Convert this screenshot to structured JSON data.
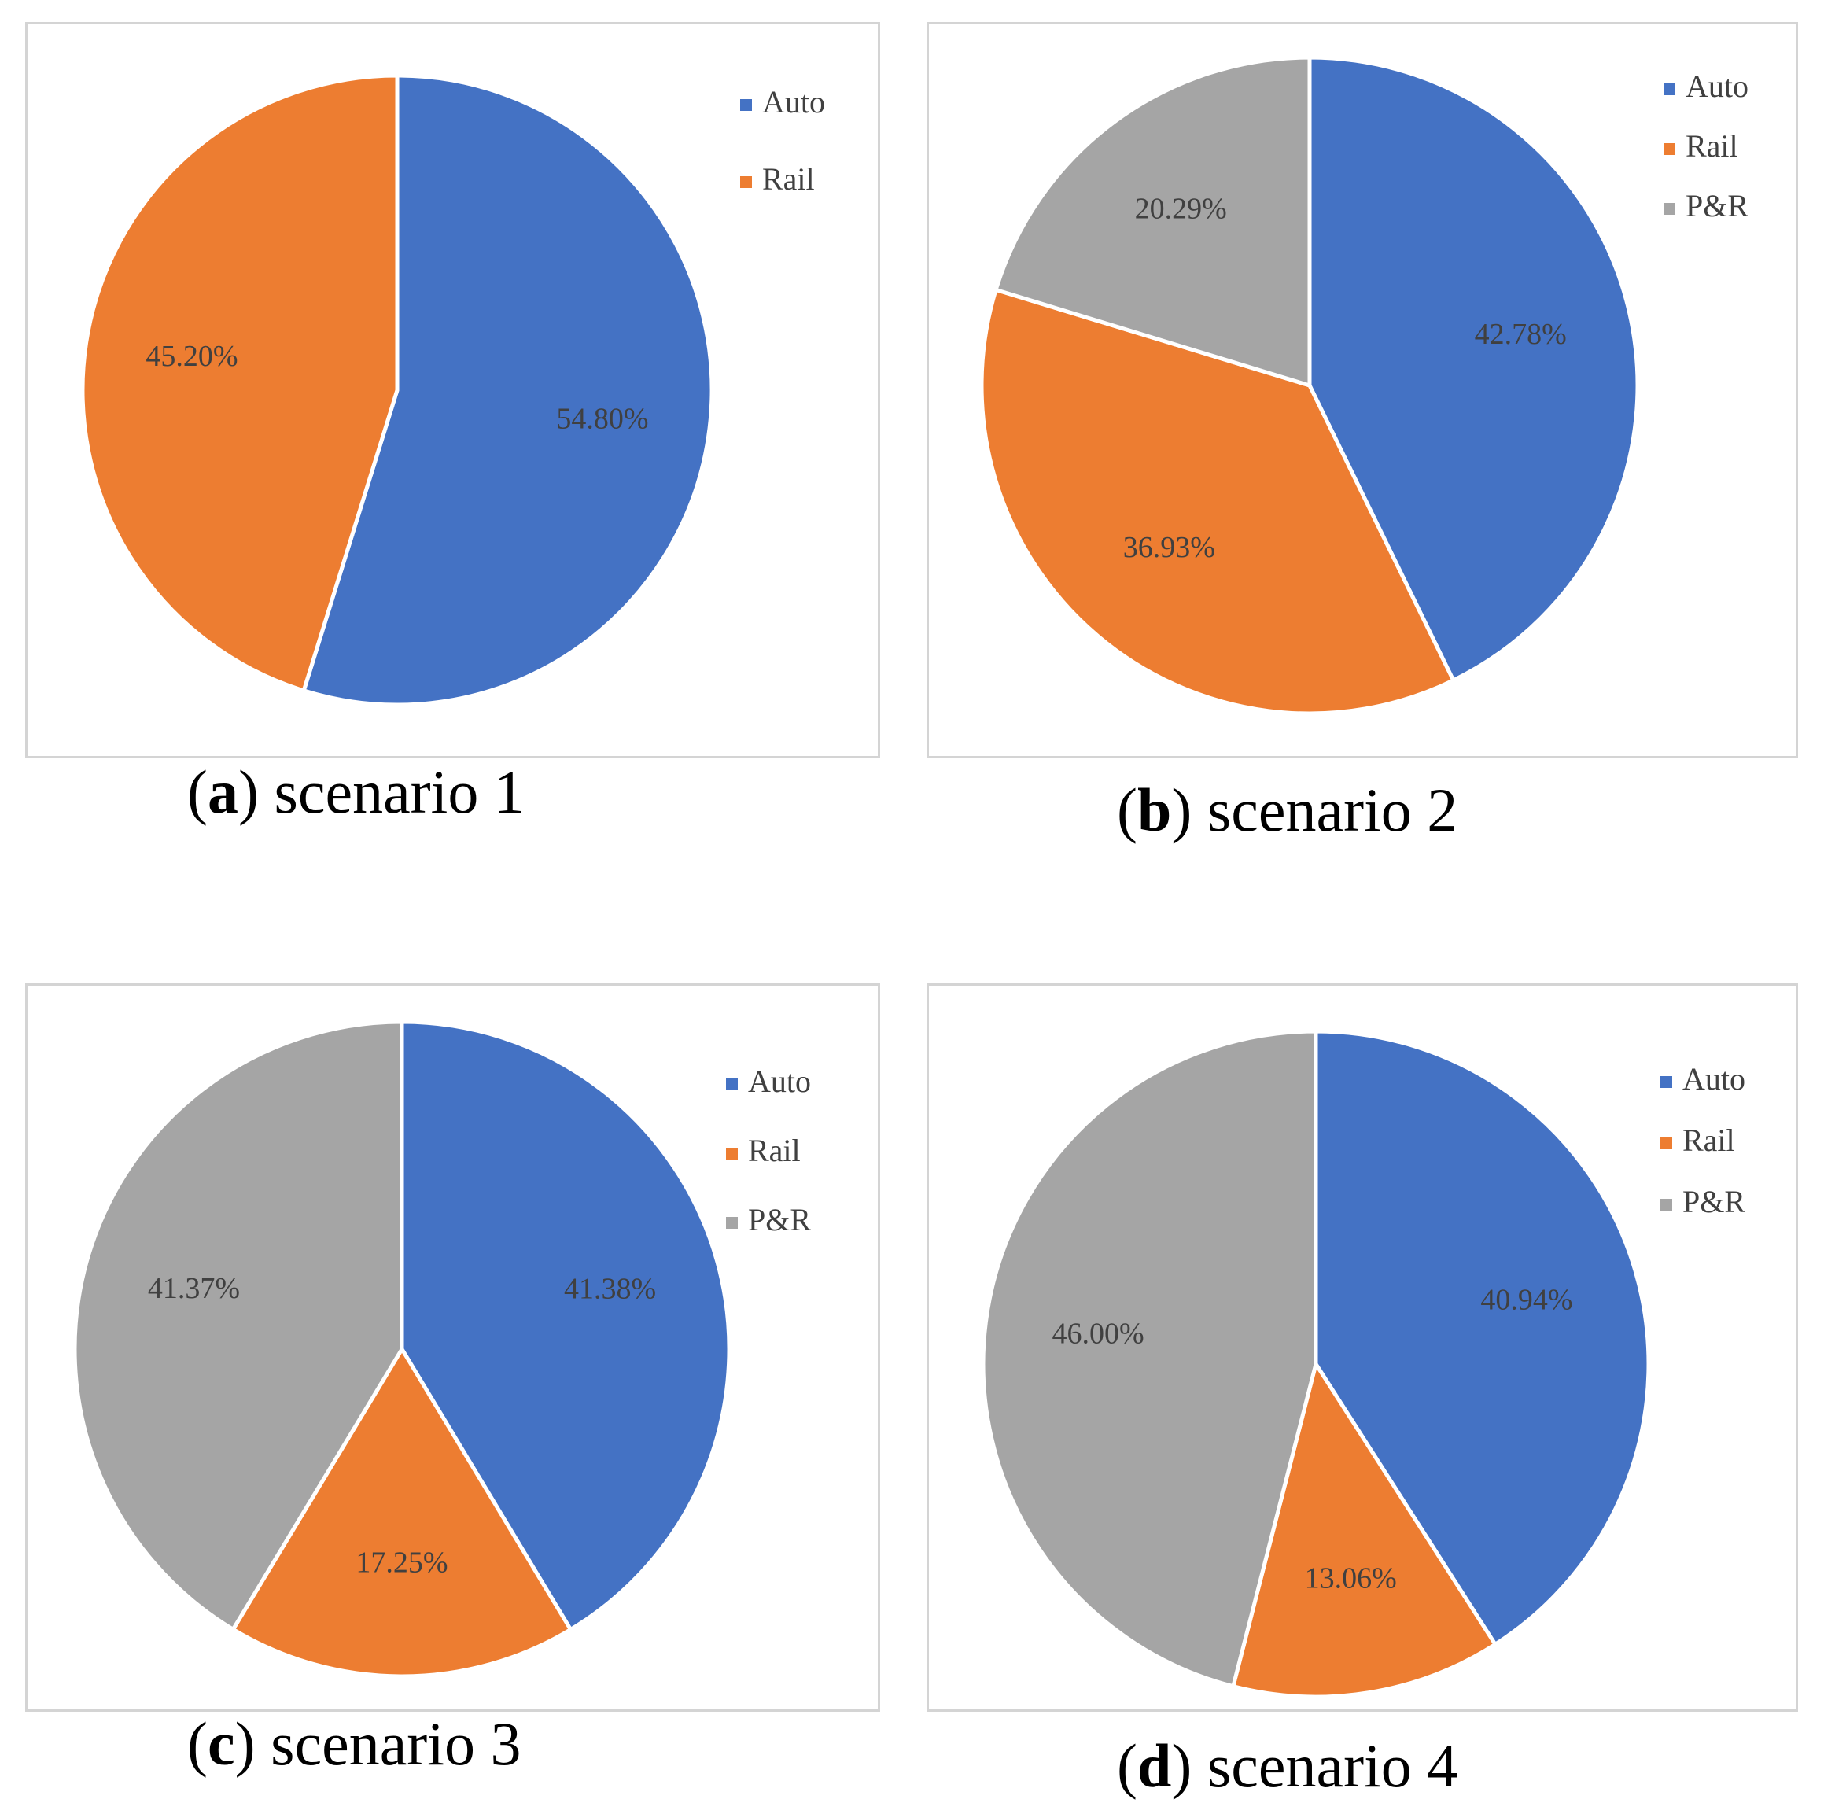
{
  "colors": {
    "Auto": "#4472C4",
    "Rail": "#ED7D31",
    "P&R": "#A5A5A5"
  },
  "chart_data": [
    {
      "type": "pie",
      "id": "a",
      "caption": {
        "letter": "a",
        "text": "scenario 1"
      },
      "legend": [
        "Auto",
        "Rail"
      ],
      "slices": [
        {
          "name": "Auto",
          "value": 54.8,
          "label": "54.80%"
        },
        {
          "name": "Rail",
          "value": 45.2,
          "label": "45.20%"
        }
      ]
    },
    {
      "type": "pie",
      "id": "b",
      "caption": {
        "letter": "b",
        "text": "scenario 2"
      },
      "legend": [
        "Auto",
        "Rail",
        "P&R"
      ],
      "slices": [
        {
          "name": "Auto",
          "value": 42.78,
          "label": "42.78%"
        },
        {
          "name": "Rail",
          "value": 36.93,
          "label": "36.93%"
        },
        {
          "name": "P&R",
          "value": 20.29,
          "label": "20.29%"
        }
      ]
    },
    {
      "type": "pie",
      "id": "c",
      "caption": {
        "letter": "c",
        "text": "scenario 3"
      },
      "legend": [
        "Auto",
        "Rail",
        "P&R"
      ],
      "slices": [
        {
          "name": "Auto",
          "value": 41.38,
          "label": "41.38%"
        },
        {
          "name": "Rail",
          "value": 17.25,
          "label": "17.25%"
        },
        {
          "name": "P&R",
          "value": 41.37,
          "label": "41.37%"
        }
      ]
    },
    {
      "type": "pie",
      "id": "d",
      "caption": {
        "letter": "d",
        "text": "scenario 4"
      },
      "legend": [
        "Auto",
        "Rail",
        "P&R"
      ],
      "slices": [
        {
          "name": "Auto",
          "value": 40.94,
          "label": "40.94%"
        },
        {
          "name": "Rail",
          "value": 13.06,
          "label": "13.06%"
        },
        {
          "name": "P&R",
          "value": 46.0,
          "label": "46.00%"
        }
      ]
    }
  ]
}
